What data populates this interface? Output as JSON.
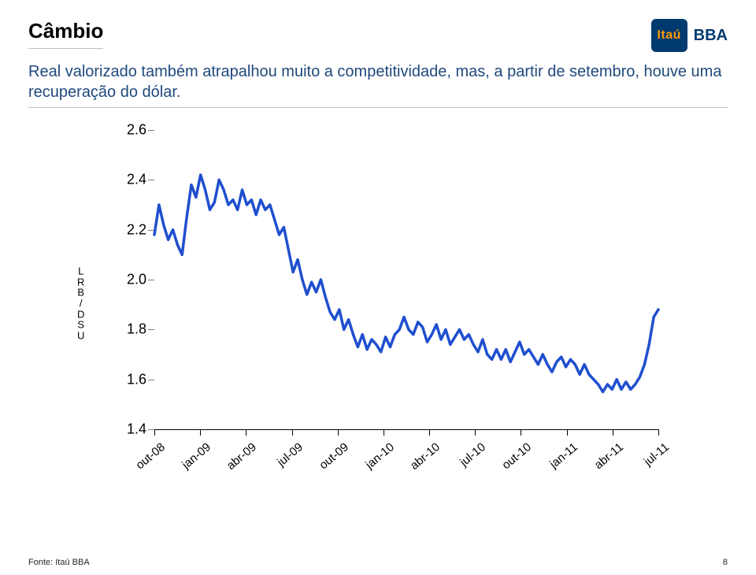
{
  "brand": {
    "square_text": "Itaú",
    "suffix": "BBA",
    "square_bg": "#003a6e",
    "square_fg": "#ff9900"
  },
  "title": "Câmbio",
  "subtitle": "Real valorizado também atrapalhou muito a competitividade, mas, a partir de setembro, houve uma recuperação do dólar.",
  "footer": {
    "source": "Fonte: Itaú BBA",
    "page": "8"
  },
  "chart": {
    "type": "line",
    "line_color": "#1f4fcf",
    "line_width": 3.5,
    "background_color": "#ffffff",
    "axis_color": "#000000",
    "tick_font_size": 18,
    "xlabel_font_size": 15,
    "x_label_rotation_deg": -40,
    "ylabel_stack": [
      "L",
      "R",
      "B",
      "/",
      "D",
      "S",
      "U"
    ],
    "y": {
      "min": 1.4,
      "max": 2.6,
      "ticks": [
        1.4,
        1.6,
        1.8,
        2.0,
        2.2,
        2.4,
        2.6
      ]
    },
    "x": {
      "categories": [
        "out-08",
        "jan-09",
        "abr-09",
        "jul-09",
        "out-09",
        "jan-10",
        "abr-10",
        "jul-10",
        "out-10",
        "jan-11",
        "abr-11",
        "jul-11"
      ]
    },
    "series": [
      {
        "name": "USD/BRL",
        "color": "#1f4fcf",
        "data": [
          2.18,
          2.3,
          2.22,
          2.16,
          2.2,
          2.14,
          2.1,
          2.25,
          2.38,
          2.33,
          2.42,
          2.36,
          2.28,
          2.31,
          2.4,
          2.36,
          2.3,
          2.32,
          2.28,
          2.36,
          2.3,
          2.32,
          2.26,
          2.32,
          2.28,
          2.3,
          2.24,
          2.18,
          2.21,
          2.12,
          2.03,
          2.08,
          2.0,
          1.94,
          1.99,
          1.95,
          2.0,
          1.93,
          1.87,
          1.84,
          1.88,
          1.8,
          1.84,
          1.78,
          1.73,
          1.78,
          1.72,
          1.76,
          1.74,
          1.71,
          1.77,
          1.73,
          1.78,
          1.8,
          1.85,
          1.8,
          1.78,
          1.83,
          1.81,
          1.75,
          1.78,
          1.82,
          1.76,
          1.8,
          1.74,
          1.77,
          1.8,
          1.76,
          1.78,
          1.74,
          1.71,
          1.76,
          1.7,
          1.68,
          1.72,
          1.68,
          1.72,
          1.67,
          1.71,
          1.75,
          1.7,
          1.72,
          1.69,
          1.66,
          1.7,
          1.66,
          1.63,
          1.67,
          1.69,
          1.65,
          1.68,
          1.66,
          1.62,
          1.66,
          1.62,
          1.6,
          1.58,
          1.55,
          1.58,
          1.56,
          1.6,
          1.56,
          1.59,
          1.56,
          1.58,
          1.61,
          1.66,
          1.74,
          1.85,
          1.88
        ]
      }
    ]
  }
}
